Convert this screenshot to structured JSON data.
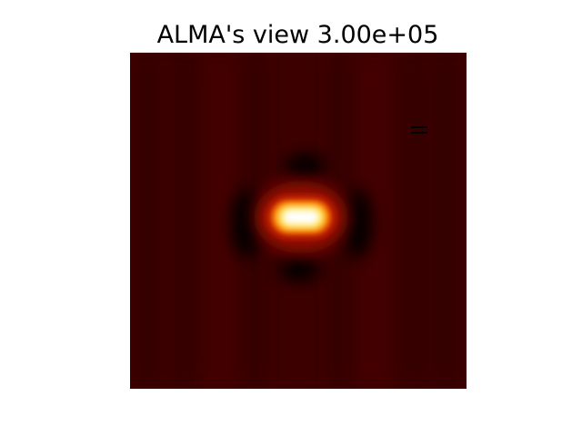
{
  "figure": {
    "title": "ALMA's view 3.00e+05",
    "colormap": "afmhot",
    "colors": {
      "background": "#3d0000",
      "ring_dark": "#000000",
      "core_white": "#ffffff",
      "core_yellow": "#ffe45a",
      "core_orange": "#ff8a00",
      "core_red": "#c81400"
    }
  }
}
